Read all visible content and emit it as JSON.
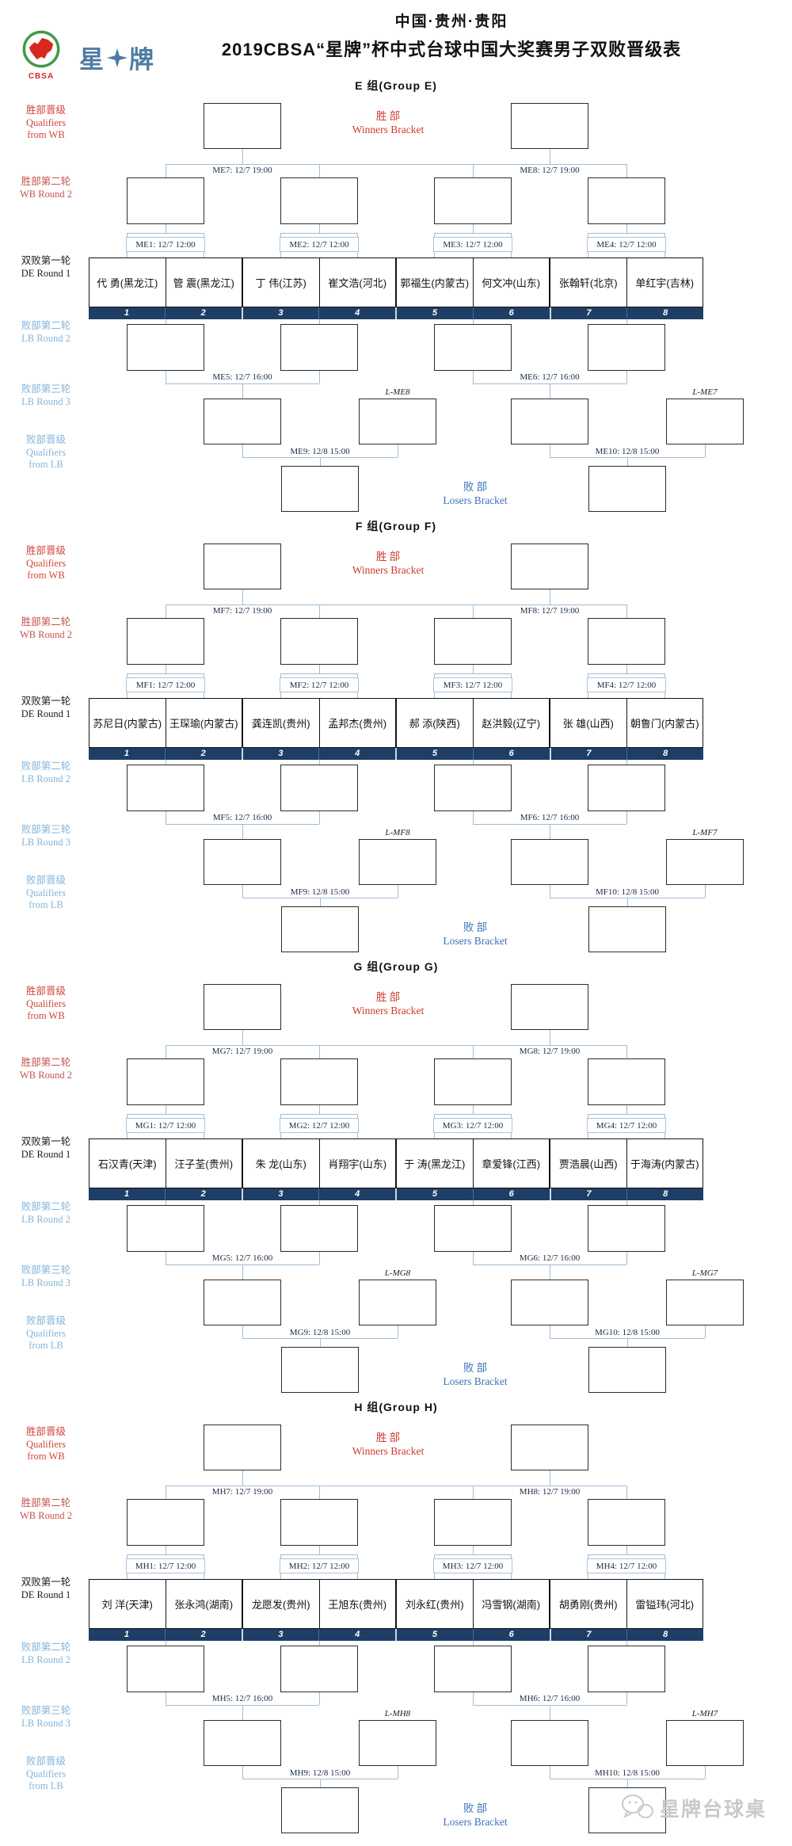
{
  "header": {
    "location": "中国·贵州·贵阳",
    "title": "2019CBSA“星牌”杯中式台球中国大奖赛男子双败晋级表"
  },
  "logo": {
    "cbsa_text": "CBSA",
    "brand_left": "星",
    "brand_right": "牌"
  },
  "row_labels": {
    "wb_qual": [
      "胜部晋级",
      "Qualifiers",
      "from WB"
    ],
    "wb_r2": [
      "胜部第二轮",
      "WB Round 2"
    ],
    "de_r1": [
      "双败第一轮",
      "DE Round 1"
    ],
    "lb_r2": [
      "败部第二轮",
      "LB Round 2"
    ],
    "lb_r3": [
      "败部第三轮",
      "LB Round 3"
    ],
    "lb_qual": [
      "败部晋级",
      "Qualifiers",
      "from LB"
    ]
  },
  "bracket_labels": {
    "winners_cn": "胜  部",
    "winners_en": "Winners Bracket",
    "losers_cn": "败  部",
    "losers_en": "Losers Bracket"
  },
  "groups": [
    {
      "title": "E 组(Group E)",
      "players": [
        "代 勇(黑龙江)",
        "管 震(黑龙江)",
        "丁 伟(江苏)",
        "崔文浩(河北)",
        "郭福生(内蒙古)",
        "何文冲(山东)",
        "张翰轩(北京)",
        "单红宇(吉林)"
      ],
      "seeds": [
        "1",
        "2",
        "3",
        "4",
        "5",
        "6",
        "7",
        "8"
      ],
      "matches": {
        "r1": [
          "ME1: 12/7 12:00",
          "ME2: 12/7 12:00",
          "ME3: 12/7 12:00",
          "ME4: 12/7 12:00"
        ],
        "wb": [
          "ME7: 12/7 19:00",
          "ME8: 12/7 19:00"
        ],
        "lb2": [
          "ME5: 12/7 16:00",
          "ME6: 12/7 16:00"
        ],
        "lb3": [
          "ME9: 12/8 15:00",
          "ME10: 12/8 15:00"
        ],
        "lin": [
          "L-ME8",
          "L-ME7"
        ]
      }
    },
    {
      "title": "F 组(Group F)",
      "players": [
        "苏尼日(内蒙古)",
        "王琛瑜(内蒙古)",
        "龚连凯(贵州)",
        "孟邦杰(贵州)",
        "郝 添(陕西)",
        "赵洪毅(辽宁)",
        "张 雄(山西)",
        "朝鲁门(内蒙古)"
      ],
      "seeds": [
        "1",
        "2",
        "3",
        "4",
        "5",
        "6",
        "7",
        "8"
      ],
      "matches": {
        "r1": [
          "MF1: 12/7 12:00",
          "MF2: 12/7 12:00",
          "MF3: 12/7 12:00",
          "MF4: 12/7 12:00"
        ],
        "wb": [
          "MF7: 12/7 19:00",
          "MF8: 12/7 19:00"
        ],
        "lb2": [
          "MF5: 12/7 16:00",
          "MF6: 12/7 16:00"
        ],
        "lb3": [
          "MF9: 12/8 15:00",
          "MF10: 12/8 15:00"
        ],
        "lin": [
          "L-MF8",
          "L-MF7"
        ]
      }
    },
    {
      "title": "G 组(Group G)",
      "players": [
        "石汉青(天津)",
        "汪子荃(贵州)",
        "朱 龙(山东)",
        "肖翔宇(山东)",
        "于 涛(黑龙江)",
        "章爱锋(江西)",
        "贾浩晨(山西)",
        "于海涛(内蒙古)"
      ],
      "seeds": [
        "1",
        "2",
        "3",
        "4",
        "5",
        "6",
        "7",
        "8"
      ],
      "matches": {
        "r1": [
          "MG1: 12/7 12:00",
          "MG2: 12/7 12:00",
          "MG3: 12/7 12:00",
          "MG4: 12/7 12:00"
        ],
        "wb": [
          "MG7: 12/7 19:00",
          "MG8: 12/7 19:00"
        ],
        "lb2": [
          "MG5: 12/7 16:00",
          "MG6: 12/7 16:00"
        ],
        "lb3": [
          "MG9: 12/8 15:00",
          "MG10: 12/8 15:00"
        ],
        "lin": [
          "L-MG8",
          "L-MG7"
        ]
      }
    },
    {
      "title": "H 组(Group H)",
      "players": [
        "刘 洋(天津)",
        "张永鸿(湖南)",
        "龙愿发(贵州)",
        "王旭东(贵州)",
        "刘永红(贵州)",
        "冯雪钢(湖南)",
        "胡勇刚(贵州)",
        "雷镒玮(河北)"
      ],
      "seeds": [
        "1",
        "2",
        "3",
        "4",
        "5",
        "6",
        "7",
        "8"
      ],
      "matches": {
        "r1": [
          "MH1: 12/7 12:00",
          "MH2: 12/7 12:00",
          "MH3: 12/7 12:00",
          "MH4: 12/7 12:00"
        ],
        "wb": [
          "MH7: 12/7 19:00",
          "MH8: 12/7 19:00"
        ],
        "lb2": [
          "MH5: 12/7 16:00",
          "MH6: 12/7 16:00"
        ],
        "lb3": [
          "MH9: 12/8 15:00",
          "MH10: 12/8 15:00"
        ],
        "lin": [
          "L-MH8",
          "L-MH7"
        ]
      }
    }
  ],
  "watermark": {
    "text": "星牌台球桌",
    "icon": "wechat-icon"
  }
}
